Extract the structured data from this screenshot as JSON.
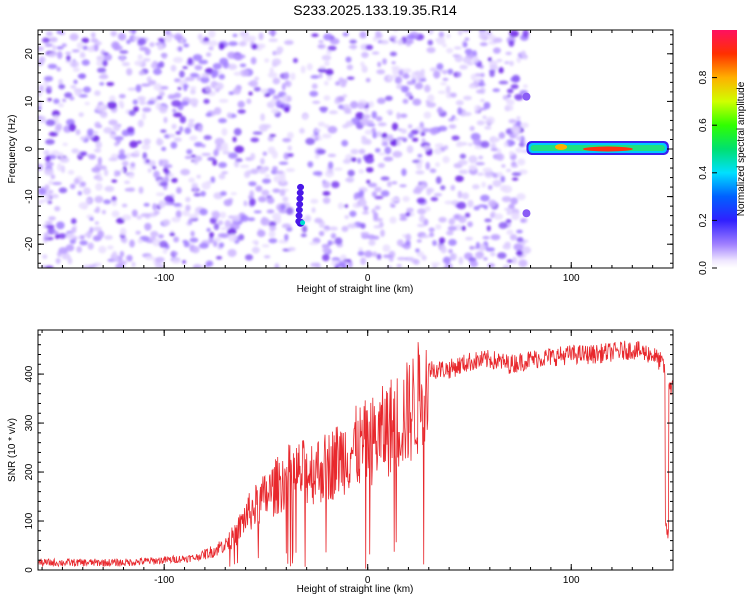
{
  "title": "S233.2025.133.19.35.R14",
  "chart_data": [
    {
      "type": "heatmap",
      "xlabel": "Height of straight line (km)",
      "ylabel": "Frequency (Hz)",
      "xlim": [
        -162,
        150
      ],
      "ylim": [
        -25,
        25
      ],
      "xticks": [
        -100,
        0,
        100
      ],
      "yticks": [
        -20,
        -10,
        0,
        10,
        20
      ],
      "colorbar": {
        "label": "Normalized spectral amplitude",
        "range": [
          0,
          1
        ],
        "ticks": [
          "0.0",
          "0.2",
          "0.4",
          "0.6",
          "0.8"
        ]
      },
      "regions": [
        {
          "description": "noise",
          "x_range": [
            -162,
            78
          ],
          "freq_range": [
            -25,
            25
          ]
        },
        {
          "description": "carrier",
          "x_range": [
            78,
            148
          ],
          "frequency": 0,
          "amplitude_peak": 1.0
        }
      ],
      "blobs": [
        {
          "x": -33,
          "freq": -15.5,
          "amplitude": 0.3
        },
        {
          "x": 78,
          "freq": 11,
          "amplitude": 0.05
        },
        {
          "x": 78,
          "freq": -13.5,
          "amplitude": 0.05
        }
      ]
    },
    {
      "type": "line",
      "xlabel": "Height of straight line (km)",
      "ylabel": "SNR (10 * v/v)",
      "xlim": [
        -162,
        150
      ],
      "ylim": [
        0,
        490
      ],
      "xticks": [
        -100,
        0,
        100
      ],
      "yticks": [
        0,
        100,
        200,
        300,
        400
      ],
      "line_color": "#e8282d",
      "series": [
        {
          "x": [
            -162,
            -140,
            -120,
            -100,
            -85,
            -75,
            -65,
            -60,
            -50,
            -40,
            -30,
            -20,
            -10,
            0,
            5,
            10,
            15,
            20,
            25,
            28,
            30,
            40,
            50,
            60,
            70,
            80,
            90,
            100,
            110,
            120,
            130,
            140,
            145,
            148,
            150
          ],
          "values": [
            15,
            15,
            15,
            20,
            25,
            40,
            70,
            110,
            150,
            190,
            200,
            210,
            240,
            260,
            270,
            290,
            305,
            320,
            350,
            400,
            410,
            410,
            425,
            430,
            420,
            430,
            435,
            440,
            440,
            445,
            450,
            440,
            420,
            380,
            370
          ]
        }
      ]
    }
  ]
}
